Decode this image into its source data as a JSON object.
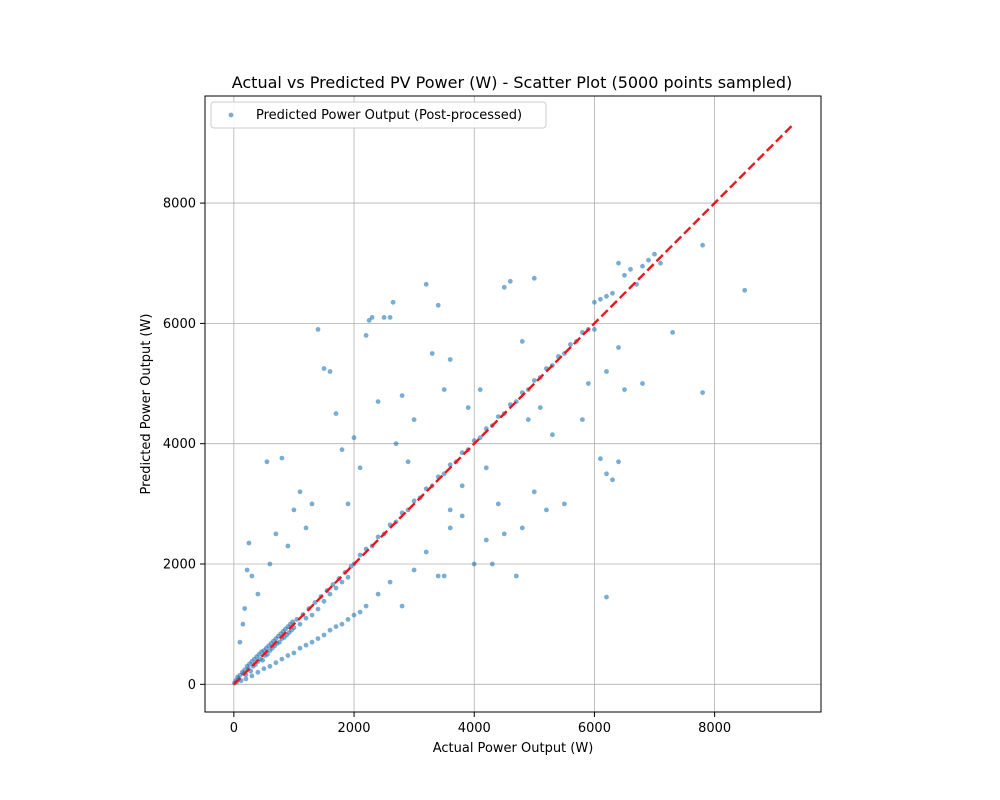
{
  "chart_data": {
    "type": "scatter",
    "title": "Actual vs Predicted PV Power (W) - Scatter Plot (5000 points sampled)",
    "xlabel": "Actual Power Output (W)",
    "ylabel": "Predicted Power Output (W)",
    "xlim": [
      -480,
      9770
    ],
    "ylim": [
      -460,
      9780
    ],
    "xticks": [
      0,
      2000,
      4000,
      6000,
      8000
    ],
    "yticks": [
      0,
      2000,
      4000,
      6000,
      8000
    ],
    "xtick_labels": [
      "0",
      "2000",
      "4000",
      "6000",
      "8000"
    ],
    "ytick_labels": [
      "0",
      "2000",
      "4000",
      "6000",
      "8000"
    ],
    "grid": true,
    "legend": {
      "position": "top-left",
      "entries": [
        "Predicted Power Output (Post-processed)"
      ]
    },
    "colors": {
      "points": "#1f77b4",
      "reference_line": "#e41a1c",
      "grid": "#b0b0b0"
    },
    "reference_line": {
      "x": [
        0,
        9300
      ],
      "y": [
        0,
        9300
      ],
      "style": "dashed"
    },
    "series": [
      {
        "name": "Predicted Power Output (Post-processed)",
        "points": [
          [
            10,
            20
          ],
          [
            30,
            60
          ],
          [
            50,
            40
          ],
          [
            60,
            120
          ],
          [
            80,
            90
          ],
          [
            100,
            150
          ],
          [
            120,
            60
          ],
          [
            140,
            200
          ],
          [
            160,
            180
          ],
          [
            180,
            240
          ],
          [
            200,
            160
          ],
          [
            220,
            300
          ],
          [
            240,
            260
          ],
          [
            260,
            340
          ],
          [
            280,
            220
          ],
          [
            300,
            380
          ],
          [
            320,
            300
          ],
          [
            340,
            420
          ],
          [
            360,
            330
          ],
          [
            380,
            460
          ],
          [
            400,
            380
          ],
          [
            420,
            500
          ],
          [
            440,
            420
          ],
          [
            460,
            540
          ],
          [
            480,
            400
          ],
          [
            500,
            560
          ],
          [
            520,
            480
          ],
          [
            540,
            600
          ],
          [
            560,
            500
          ],
          [
            580,
            640
          ],
          [
            600,
            560
          ],
          [
            620,
            680
          ],
          [
            640,
            600
          ],
          [
            660,
            720
          ],
          [
            680,
            640
          ],
          [
            700,
            760
          ],
          [
            720,
            680
          ],
          [
            740,
            800
          ],
          [
            760,
            700
          ],
          [
            780,
            840
          ],
          [
            800,
            760
          ],
          [
            820,
            880
          ],
          [
            840,
            780
          ],
          [
            860,
            920
          ],
          [
            880,
            820
          ],
          [
            900,
            960
          ],
          [
            920,
            860
          ],
          [
            940,
            1000
          ],
          [
            960,
            900
          ],
          [
            980,
            1040
          ],
          [
            1000,
            940
          ],
          [
            1050,
            1080
          ],
          [
            1100,
            1000
          ],
          [
            1150,
            1160
          ],
          [
            1200,
            1100
          ],
          [
            1250,
            1260
          ],
          [
            1300,
            1150
          ],
          [
            1350,
            1360
          ],
          [
            1400,
            1250
          ],
          [
            1450,
            1460
          ],
          [
            1500,
            1380
          ],
          [
            1550,
            1560
          ],
          [
            1600,
            1500
          ],
          [
            1650,
            1660
          ],
          [
            1700,
            1600
          ],
          [
            1750,
            1760
          ],
          [
            1800,
            1700
          ],
          [
            1850,
            1860
          ],
          [
            1900,
            1780
          ],
          [
            1950,
            1960
          ],
          [
            100,
            700
          ],
          [
            150,
            1000
          ],
          [
            180,
            1260
          ],
          [
            220,
            1900
          ],
          [
            250,
            2350
          ],
          [
            300,
            1800
          ],
          [
            400,
            1500
          ],
          [
            600,
            2000
          ],
          [
            800,
            3760
          ],
          [
            550,
            3700
          ],
          [
            700,
            2500
          ],
          [
            900,
            2300
          ],
          [
            1000,
            2900
          ],
          [
            1100,
            3200
          ],
          [
            1200,
            2600
          ],
          [
            1300,
            3000
          ],
          [
            1400,
            5900
          ],
          [
            1500,
            5250
          ],
          [
            1600,
            5200
          ],
          [
            1700,
            4500
          ],
          [
            1800,
            3900
          ],
          [
            1900,
            3000
          ],
          [
            2000,
            4100
          ],
          [
            2100,
            3600
          ],
          [
            2200,
            5800
          ],
          [
            2250,
            6050
          ],
          [
            2300,
            6100
          ],
          [
            2400,
            4700
          ],
          [
            2500,
            6100
          ],
          [
            2600,
            6100
          ],
          [
            2650,
            6350
          ],
          [
            2700,
            4000
          ],
          [
            2800,
            4800
          ],
          [
            2900,
            3700
          ],
          [
            3000,
            4400
          ],
          [
            3200,
            6650
          ],
          [
            3300,
            5500
          ],
          [
            3400,
            6300
          ],
          [
            3500,
            4900
          ],
          [
            3600,
            5400
          ],
          [
            200,
            90
          ],
          [
            300,
            140
          ],
          [
            400,
            200
          ],
          [
            500,
            260
          ],
          [
            600,
            300
          ],
          [
            700,
            360
          ],
          [
            800,
            420
          ],
          [
            900,
            480
          ],
          [
            1000,
            520
          ],
          [
            1100,
            600
          ],
          [
            1200,
            650
          ],
          [
            1300,
            700
          ],
          [
            1400,
            760
          ],
          [
            1500,
            820
          ],
          [
            1600,
            900
          ],
          [
            1700,
            960
          ],
          [
            1800,
            1000
          ],
          [
            1900,
            1080
          ],
          [
            2000,
            1150
          ],
          [
            2100,
            1200
          ],
          [
            2200,
            1300
          ],
          [
            2400,
            1500
          ],
          [
            2600,
            1700
          ],
          [
            2800,
            1300
          ],
          [
            3000,
            1900
          ],
          [
            3200,
            2200
          ],
          [
            3400,
            1800
          ],
          [
            3600,
            2600
          ],
          [
            3800,
            2800
          ],
          [
            4000,
            2000
          ],
          [
            4200,
            2400
          ],
          [
            4300,
            2000
          ],
          [
            4400,
            3000
          ],
          [
            4500,
            2500
          ],
          [
            4700,
            1800
          ],
          [
            4800,
            2600
          ],
          [
            5000,
            3200
          ],
          [
            5200,
            2900
          ],
          [
            5500,
            3000
          ],
          [
            6200,
            1450
          ],
          [
            2000,
            2000
          ],
          [
            2100,
            2150
          ],
          [
            2200,
            2250
          ],
          [
            2300,
            2300
          ],
          [
            2400,
            2450
          ],
          [
            2500,
            2500
          ],
          [
            2600,
            2650
          ],
          [
            2700,
            2700
          ],
          [
            2800,
            2850
          ],
          [
            2900,
            2900
          ],
          [
            3000,
            3050
          ],
          [
            3100,
            3100
          ],
          [
            3200,
            3250
          ],
          [
            3300,
            3300
          ],
          [
            3400,
            3450
          ],
          [
            3500,
            3500
          ],
          [
            3600,
            3650
          ],
          [
            3700,
            3700
          ],
          [
            3800,
            3850
          ],
          [
            3900,
            3900
          ],
          [
            4000,
            4050
          ],
          [
            4100,
            4100
          ],
          [
            4200,
            4250
          ],
          [
            4300,
            4300
          ],
          [
            4400,
            4450
          ],
          [
            4500,
            4500
          ],
          [
            4600,
            4650
          ],
          [
            4700,
            4700
          ],
          [
            4800,
            4850
          ],
          [
            4900,
            4900
          ],
          [
            5000,
            5050
          ],
          [
            5100,
            5100
          ],
          [
            5200,
            5250
          ],
          [
            5300,
            5300
          ],
          [
            5400,
            5450
          ],
          [
            5500,
            5500
          ],
          [
            5600,
            5650
          ],
          [
            5700,
            5700
          ],
          [
            5800,
            5850
          ],
          [
            5900,
            5900
          ],
          [
            6000,
            6350
          ],
          [
            6100,
            6400
          ],
          [
            6200,
            6450
          ],
          [
            6300,
            6500
          ],
          [
            6400,
            7000
          ],
          [
            6500,
            6800
          ],
          [
            6600,
            6900
          ],
          [
            6700,
            6650
          ],
          [
            6800,
            6950
          ],
          [
            6900,
            7050
          ],
          [
            7000,
            7150
          ],
          [
            7100,
            7000
          ],
          [
            7800,
            7300
          ],
          [
            8500,
            6550
          ],
          [
            7800,
            4850
          ],
          [
            7300,
            5850
          ],
          [
            6800,
            5000
          ],
          [
            6500,
            4900
          ],
          [
            6400,
            3700
          ],
          [
            6300,
            3400
          ],
          [
            6200,
            5200
          ],
          [
            6200,
            3500
          ],
          [
            6100,
            3750
          ],
          [
            6000,
            5900
          ],
          [
            6400,
            5600
          ],
          [
            5900,
            5000
          ],
          [
            5800,
            4400
          ],
          [
            4500,
            6600
          ],
          [
            4600,
            6700
          ],
          [
            5000,
            6750
          ],
          [
            4800,
            5700
          ],
          [
            4900,
            4400
          ],
          [
            5100,
            4600
          ],
          [
            5300,
            4150
          ],
          [
            4200,
            3600
          ],
          [
            4100,
            4900
          ],
          [
            3900,
            4600
          ],
          [
            3800,
            3300
          ],
          [
            3600,
            2900
          ],
          [
            3500,
            1800
          ]
        ]
      }
    ]
  }
}
